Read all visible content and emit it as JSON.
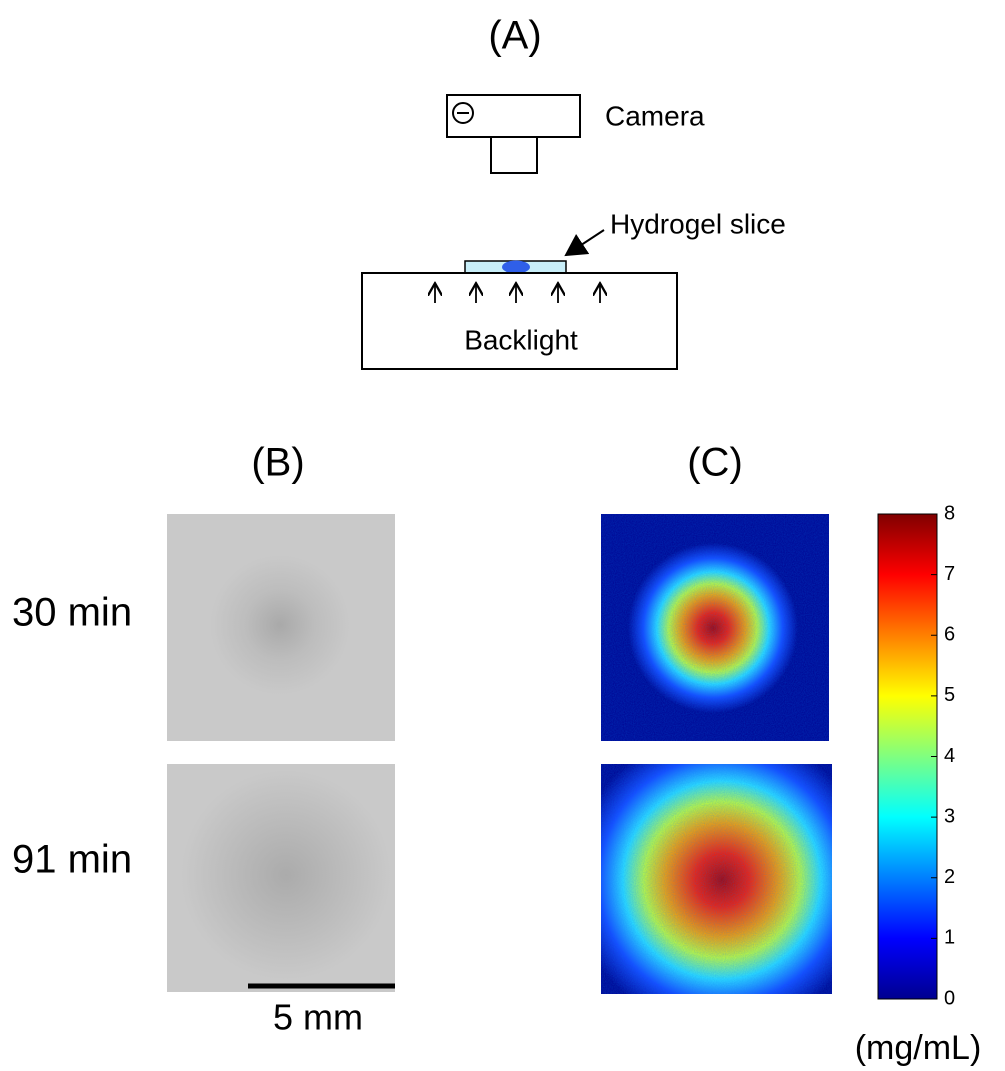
{
  "panels": {
    "a": {
      "label": "(A)",
      "camera": "Camera",
      "hydrogel": "Hydrogel slice",
      "backlight": "Backlight"
    },
    "b": {
      "label": "(B)",
      "rows": [
        "30 min",
        "91 min"
      ],
      "scale_bar": "5 mm"
    },
    "c": {
      "label": "(C)",
      "colorbar": {
        "lim": [
          0,
          8
        ],
        "ticks": [
          0,
          1,
          2,
          3,
          4,
          5,
          6,
          7,
          8
        ],
        "unit": "(mg/mL)"
      }
    }
  }
}
